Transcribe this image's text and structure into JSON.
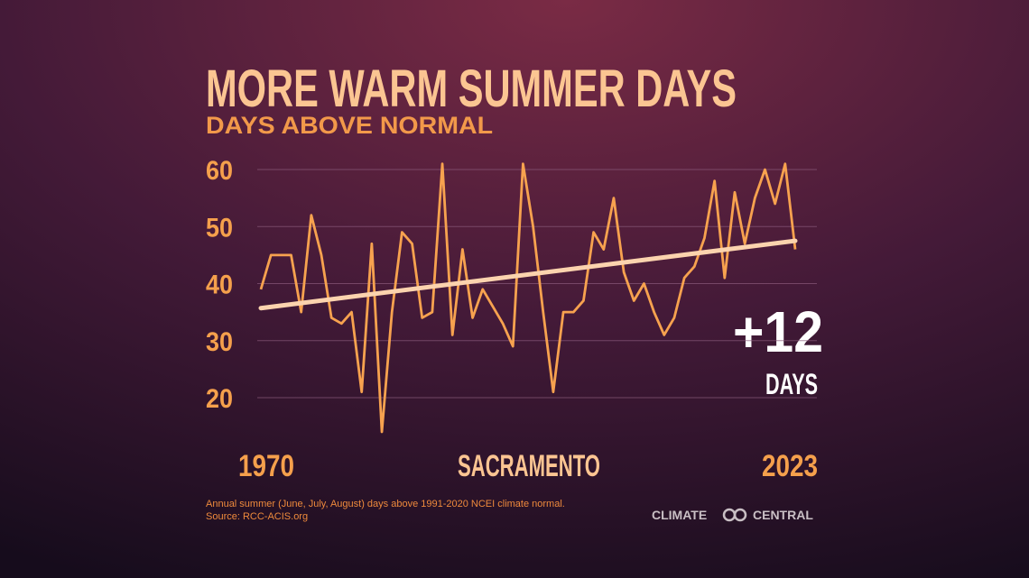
{
  "chart_data": {
    "type": "line",
    "title": "MORE WARM SUMMER DAYS",
    "subtitle": "DAYS ABOVE NORMAL",
    "location": "SACRAMENTO",
    "x": [
      1970,
      1971,
      1972,
      1973,
      1974,
      1975,
      1976,
      1977,
      1978,
      1979,
      1980,
      1981,
      1982,
      1983,
      1984,
      1985,
      1986,
      1987,
      1988,
      1989,
      1990,
      1991,
      1992,
      1993,
      1994,
      1995,
      1996,
      1997,
      1998,
      1999,
      2000,
      2001,
      2002,
      2003,
      2004,
      2005,
      2006,
      2007,
      2008,
      2009,
      2010,
      2011,
      2012,
      2013,
      2014,
      2015,
      2016,
      2017,
      2018,
      2019,
      2020,
      2021,
      2022,
      2023
    ],
    "series": [
      {
        "color": "#f7a24f",
        "values": [
          39,
          45,
          45,
          45,
          35,
          52,
          45,
          34,
          33,
          35,
          21,
          47,
          14,
          35,
          49,
          47,
          34,
          35,
          61,
          31,
          46,
          34,
          39,
          36,
          33,
          29,
          61,
          50,
          35,
          21,
          35,
          35,
          37,
          49,
          46,
          55,
          42,
          37,
          40,
          35,
          31,
          34,
          41,
          43,
          48,
          58,
          41,
          56,
          47,
          55,
          60,
          54,
          61,
          46
        ]
      }
    ],
    "trendline": {
      "color": "#fbd3ae",
      "x": [
        1970,
        2023
      ],
      "values": [
        35.7,
        47.5
      ]
    },
    "xlim": [
      1970,
      2023
    ],
    "xticks": [
      1970,
      2023
    ],
    "ylim": [
      10,
      65
    ],
    "yticks": [
      20,
      30,
      40,
      50,
      60
    ],
    "grid": true,
    "annotation": {
      "value": "+12",
      "unit": "DAYS"
    },
    "footnote": [
      "Annual summer (June, July, August) days above 1991-2020 NCEI climate normal.",
      "Source: RCC-ACIS.org"
    ],
    "brand": "CLIMATE CENTRAL"
  }
}
